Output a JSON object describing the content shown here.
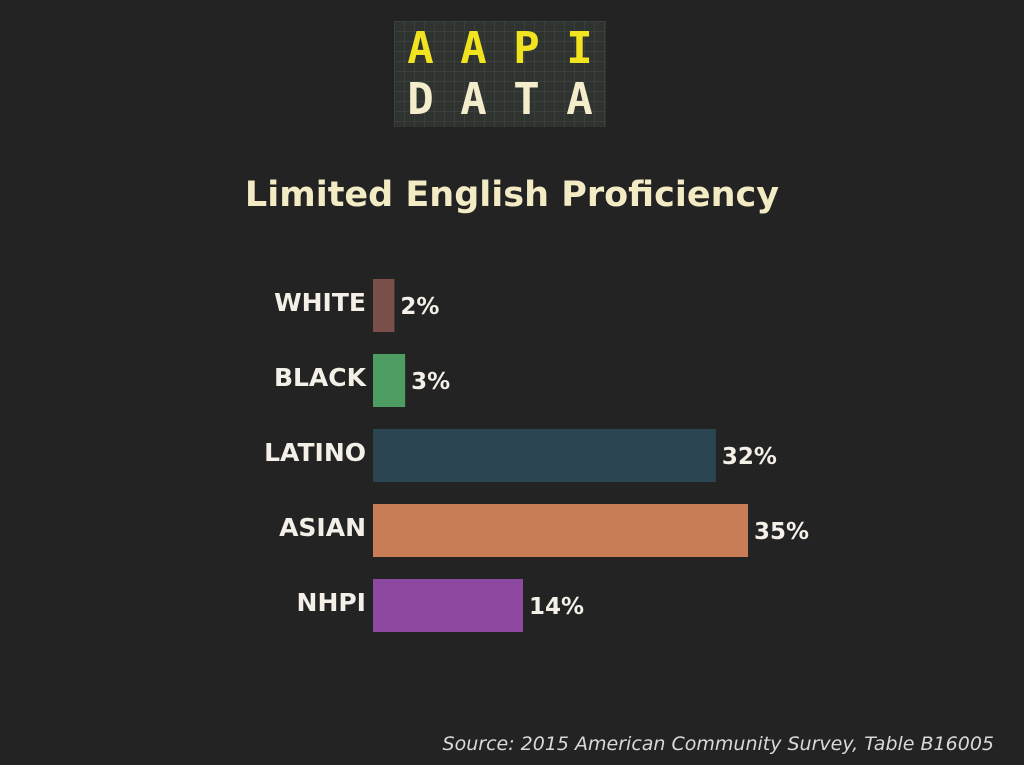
{
  "logo": {
    "row1": [
      "A",
      "A",
      "P",
      "I"
    ],
    "row2": [
      "D",
      "A",
      "T",
      "A"
    ]
  },
  "source": "Source: 2015 American Community Survey, Table B16005",
  "chart_data": {
    "type": "bar",
    "orientation": "horizontal",
    "title": "Limited English Proficiency",
    "categories": [
      "WHITE",
      "BLACK",
      "LATINO",
      "ASIAN",
      "NHPI"
    ],
    "values": [
      2,
      3,
      32,
      35,
      14
    ],
    "value_labels": [
      "2%",
      "3%",
      "32%",
      "35%",
      "14%"
    ],
    "colors": [
      "#7a4e49",
      "#4d9d63",
      "#2c4552",
      "#c97d56",
      "#8d48a0"
    ],
    "xlim": [
      0,
      35
    ],
    "grid": false,
    "legend": "none"
  }
}
